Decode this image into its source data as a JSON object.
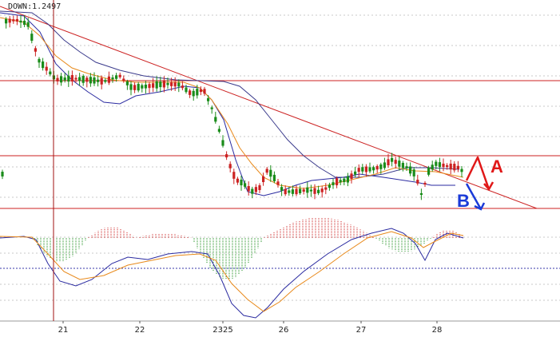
{
  "indicator_label": "DOWN:1.2497",
  "colors": {
    "up_candle": "#cc2222",
    "down_candle": "#1a8c1a",
    "grid": "#c8c8c8",
    "hline": "#cc2222",
    "trend": "#cc2222",
    "ma_fast": "#e8891a",
    "ma_slow": "#3b3b8c",
    "band": "#2a2aa0",
    "annot_a": "#e01818",
    "annot_b": "#1a3ad8",
    "axis_text": "#222222",
    "dotted_blue": "#3a3aa8"
  },
  "annotations": {
    "a_label": "A",
    "b_label": "B"
  },
  "chart_data": [
    {
      "type": "candlestick",
      "title": "",
      "x_ticks": [
        "21",
        "22",
        "2325",
        "26",
        "27",
        "28"
      ],
      "horizontal_levels": [
        "upper resistance",
        "middle resistance",
        "support"
      ],
      "series": [
        {
          "type": "candlestick"
        },
        {
          "type": "line"
        },
        {
          "type": "line"
        },
        {
          "type": "line"
        }
      ]
    },
    {
      "type": "bar",
      "title": "",
      "series": [
        {
          "type": "histogram"
        },
        {
          "type": "line"
        },
        {
          "type": "line"
        }
      ]
    }
  ]
}
